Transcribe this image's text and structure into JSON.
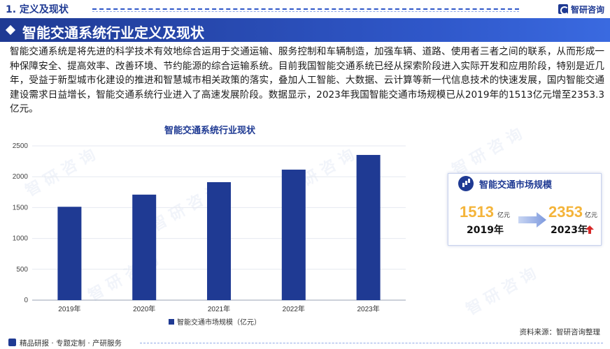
{
  "header": {
    "section_title": "1. 定义及现状",
    "brand_name": "智研咨询"
  },
  "title_bar": {
    "title": "智能交通系统行业定义及现状"
  },
  "intro_text": "智能交通系统是将先进的科学技术有效地综合运用于交通运输、服务控制和车辆制造，加强车辆、道路、使用者三者之间的联系，从而形成一种保障安全、提高效率、改善环境、节约能源的综合运输系统。目前我国智能交通系统已经从探索阶段进入实际开发和应用阶段，特别是近几年，受益于新型城市化建设的推进和智慧城市相关政策的落实，叠加人工智能、大数据、云计算等新一代信息技术的快速发展，国内智能交通建设需求日益增长，智能交通系统行业进入了高速发展阶段。数据显示，2023年我国智能交通市场规模已从2019年的1513亿元增至2353.3亿元。",
  "chart_data": {
    "type": "bar",
    "title": "智能交通系统行业现状",
    "categories": [
      "2019年",
      "2020年",
      "2021年",
      "2022年",
      "2023年"
    ],
    "series": [
      {
        "name": "智能交通市场规模（亿元）",
        "values": [
          1513,
          1710,
          1912,
          2115,
          2353.3
        ]
      }
    ],
    "yticks": [
      "0",
      "500",
      "1000",
      "1500",
      "2000",
      "2500"
    ],
    "ylim": [
      0,
      2500
    ],
    "color": "#1f3a93",
    "legend_position": "bottom"
  },
  "card": {
    "title": "智能交通市场规模",
    "start_value": "1513",
    "start_unit": "亿元",
    "start_year": "2019年",
    "end_value": "2353",
    "end_unit": "亿元",
    "end_year": "2023年",
    "accent_color": "#f4b43a"
  },
  "source": "资料来源：智研咨询整理",
  "footer": {
    "text": "精品研报 · 专题定制 · 产研服务"
  },
  "colors": {
    "primary": "#1f3a93",
    "accent": "#f4b43a",
    "up_arrow": "#d62828"
  }
}
